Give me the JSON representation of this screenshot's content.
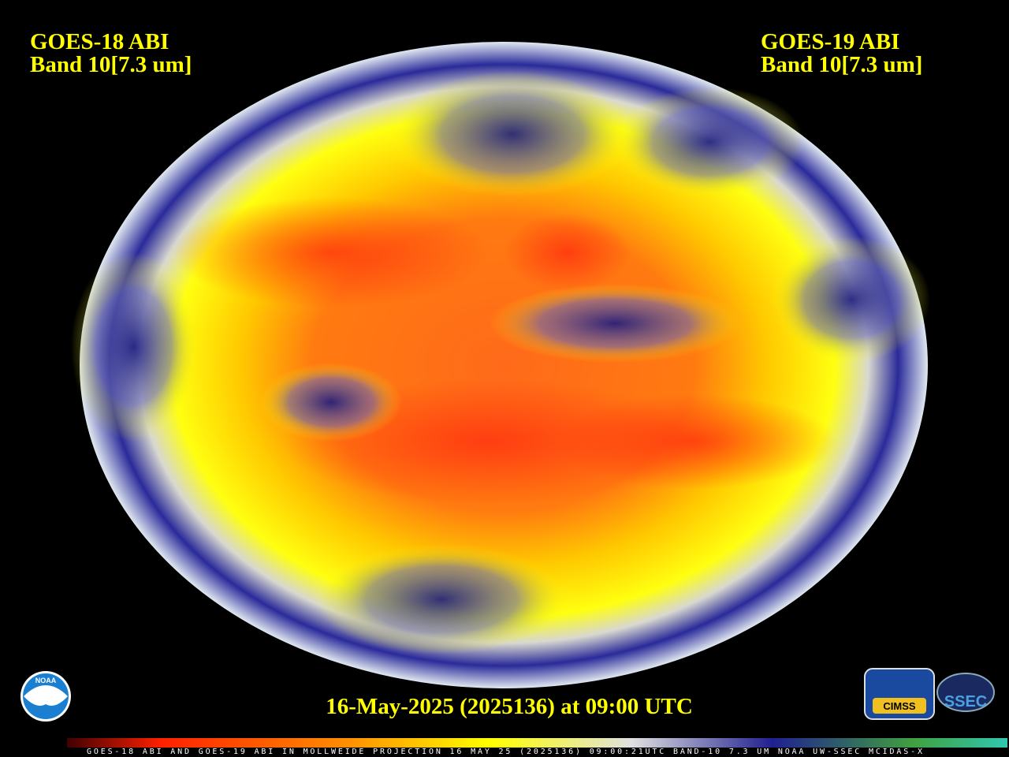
{
  "header": {
    "left": {
      "line1": "GOES-18 ABI",
      "line2": "Band 10[7.3 um]"
    },
    "right": {
      "line1": "GOES-19 ABI",
      "line2": "Band 10[7.3 um]"
    }
  },
  "footer": {
    "timestamp": "16-May-2025 (2025136) at 09:00 UTC",
    "colorbar_caption": "GOES-18 ABI AND GOES-19 ABI IN MOLLWEIDE PROJECTION 16 MAY 25 (2025136) 09:00:21UTC BAND-10 7.3 UM NOAA UW-SSEC MCIDAS-X"
  },
  "logos": {
    "noaa": "NOAA",
    "cimss": "CIMSS",
    "ssec": "SSEC"
  }
}
